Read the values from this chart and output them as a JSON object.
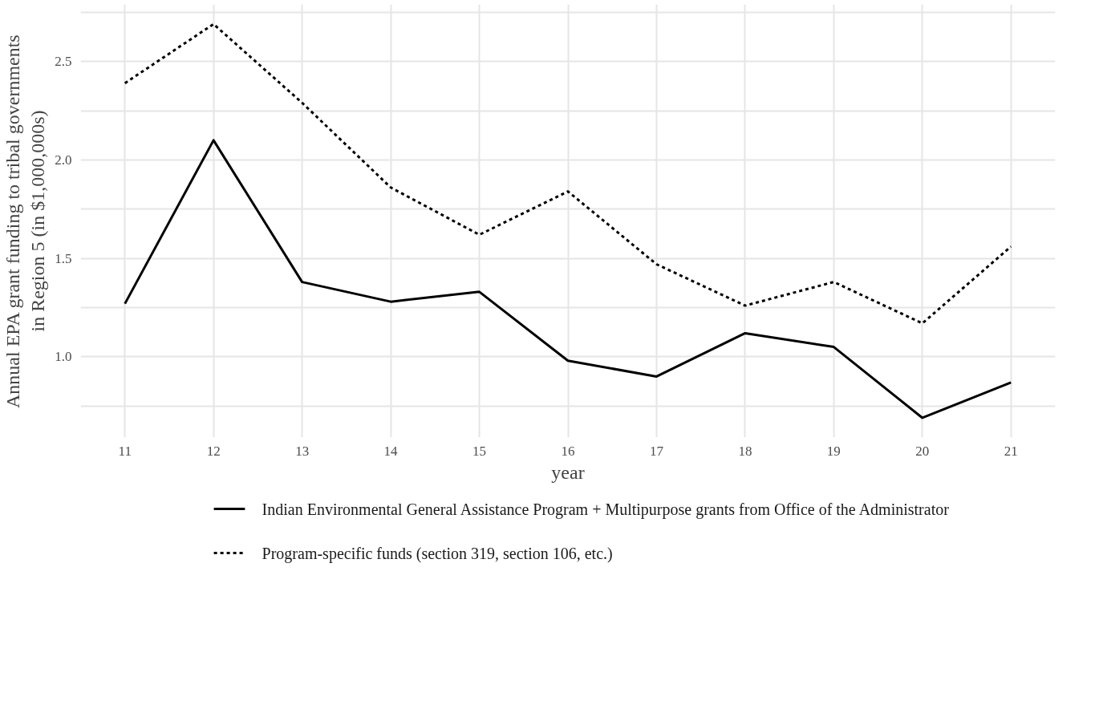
{
  "chart_data": {
    "type": "line",
    "xlabel": "year",
    "ylabel": "Annual EPA grant funding to tribal governments\nin Region 5 (in $1,000,000s)",
    "x": [
      11,
      12,
      13,
      14,
      15,
      16,
      17,
      18,
      19,
      20,
      21
    ],
    "series": [
      {
        "name": "Indian Environmental General Assistance Program + Multipurpose grants from Office of the Administrator",
        "color": "#000000",
        "line_style": "solid",
        "values": [
          1.27,
          2.1,
          1.38,
          1.28,
          1.33,
          0.98,
          0.9,
          1.12,
          1.05,
          0.69,
          0.87
        ]
      },
      {
        "name": "Program-specific funds (section 319, section 106, etc.)",
        "color": "#000000",
        "line_style": "dashed",
        "values": [
          2.39,
          2.69,
          2.29,
          1.86,
          1.62,
          1.84,
          1.47,
          1.26,
          1.38,
          1.17,
          1.56
        ]
      }
    ],
    "xlim": [
      10.5,
      21.5
    ],
    "ylim": [
      0.59,
      2.79
    ],
    "xticks": [
      11,
      12,
      13,
      14,
      15,
      16,
      17,
      18,
      19,
      20,
      21
    ],
    "yticks": [
      {
        "value": 0.75,
        "label": null
      },
      {
        "value": 1.0,
        "label": "1.0"
      },
      {
        "value": 1.25,
        "label": null
      },
      {
        "value": 1.5,
        "label": "1.5"
      },
      {
        "value": 1.75,
        "label": null
      },
      {
        "value": 2.0,
        "label": "2.0"
      },
      {
        "value": 2.25,
        "label": null
      },
      {
        "value": 2.5,
        "label": "2.5"
      },
      {
        "value": 2.75,
        "label": null
      }
    ],
    "grid": true,
    "legend": "bottom",
    "marker": "none"
  }
}
